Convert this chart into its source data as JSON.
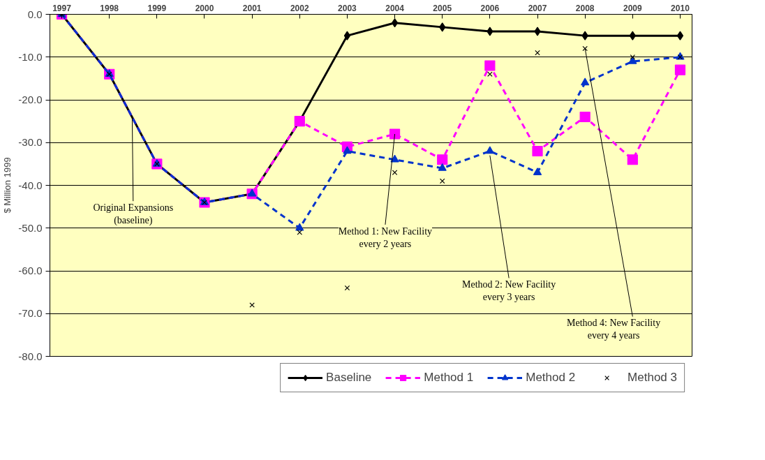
{
  "chart_data": {
    "type": "line",
    "ylabel": "$ Million 1999",
    "categories": [
      "1997",
      "1998",
      "1999",
      "2000",
      "2001",
      "2002",
      "2003",
      "2004",
      "2005",
      "2006",
      "2007",
      "2008",
      "2009",
      "2010"
    ],
    "series": [
      {
        "name": "Baseline",
        "color": "#000000",
        "marker": "diamond",
        "line_style": "solid",
        "values": [
          0,
          -14,
          -35,
          -44,
          -42,
          -25,
          -5,
          -2,
          -3,
          -4,
          -4,
          -5,
          -5,
          -5
        ]
      },
      {
        "name": "Method 1",
        "color": "#ff00ff",
        "marker": "square",
        "line_style": "dashed",
        "values": [
          0,
          -14,
          -35,
          -44,
          -42,
          -25,
          -31,
          -28,
          -34,
          -12,
          -32,
          -24,
          -34,
          -13
        ]
      },
      {
        "name": "Method 2",
        "color": "#0033cc",
        "marker": "triangle",
        "line_style": "dashed",
        "values": [
          0,
          -14,
          -35,
          -44,
          -42,
          -50,
          -32,
          -34,
          -36,
          -32,
          -37,
          -16,
          -11,
          -10
        ]
      },
      {
        "name": "Method 3",
        "color": "#000000",
        "type": "scatter",
        "marker": "cross",
        "values": [
          0,
          -14,
          -35,
          -44,
          -68,
          -51,
          -64,
          -37,
          -39,
          -14,
          -9,
          -8,
          -10,
          -10
        ]
      }
    ],
    "ylim": [
      -80,
      0
    ],
    "yticks": [
      {
        "value": 0,
        "label": "0.0"
      },
      {
        "value": -10,
        "label": "-10.0"
      },
      {
        "value": -20,
        "label": "-20.0"
      },
      {
        "value": -30,
        "label": "-30.0"
      },
      {
        "value": -40,
        "label": "-40.0"
      },
      {
        "value": -50,
        "label": "-50.0"
      },
      {
        "value": -60,
        "label": "-60.0"
      },
      {
        "value": -70,
        "label": "-70.0"
      },
      {
        "value": -80,
        "label": "-80.0"
      }
    ],
    "grid": "y",
    "legend": "bottom",
    "annotations": [
      {
        "text": "Original Expansions\n(baseline)",
        "y": -24
      },
      {
        "text": "Method 1: New Facility\nevery 2 years",
        "x": "2004",
        "y": -28
      },
      {
        "text": "Method 2: New Facility\nevery 3 years",
        "x": "2006",
        "y": -33
      },
      {
        "text": "Method 4: New Facility\nevery 4 years",
        "x": "2008",
        "y": -8
      }
    ]
  }
}
